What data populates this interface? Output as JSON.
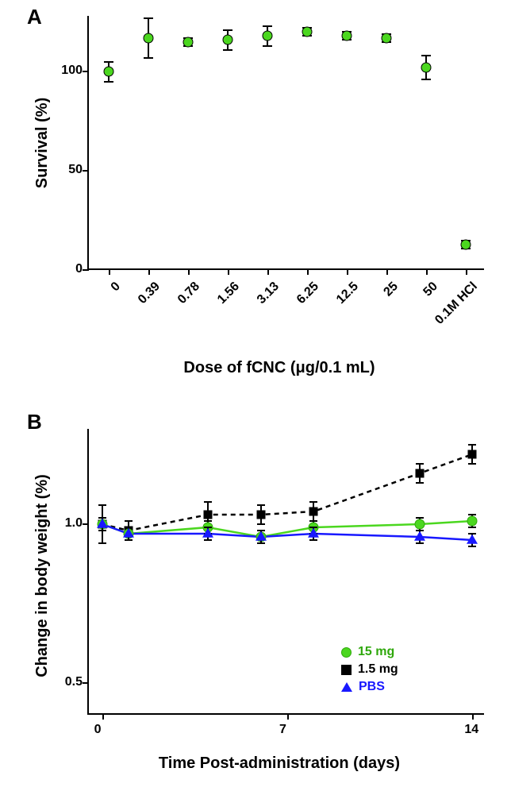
{
  "panelA": {
    "label": "A",
    "label_fontsize": 26,
    "ylabel": "Survival (%)",
    "xlabel": "Dose of fCNC (μg/0.1 mL)",
    "axis_label_fontsize": 20,
    "tick_fontsize": 16,
    "categories": [
      "0",
      "0.39",
      "0.78",
      "1.56",
      "3.13",
      "6.25",
      "12.5",
      "25",
      "50",
      "0.1M HCl"
    ],
    "values": [
      100,
      117,
      115,
      116,
      118,
      120,
      118,
      117,
      102,
      13
    ],
    "err": [
      5,
      10,
      2,
      5,
      5,
      2,
      2,
      2,
      6,
      2
    ],
    "ylim": [
      0,
      128
    ],
    "yticks": [
      0,
      50,
      100
    ],
    "marker_fill": "#4bd71f",
    "marker_stroke": "#000000",
    "marker_size": 13,
    "plot_bg": "#ffffff"
  },
  "panelB": {
    "label": "B",
    "label_fontsize": 26,
    "ylabel": "Change in body weight (%)",
    "xlabel": "Time Post-administration (days)",
    "axis_label_fontsize": 20,
    "tick_fontsize": 16,
    "xlim": [
      -0.5,
      14.5
    ],
    "xticks": [
      0,
      7,
      14
    ],
    "ylim": [
      0.4,
      1.3
    ],
    "yticks": [
      0.5,
      1.0
    ],
    "series": [
      {
        "name": "1.5 mg",
        "marker": "square",
        "fill": "#000000",
        "stroke": "#000000",
        "line_color": "#000000",
        "dash": "6,5",
        "size": 11,
        "x": [
          0,
          1,
          4,
          6,
          8,
          12,
          14
        ],
        "y": [
          1.0,
          0.98,
          1.03,
          1.03,
          1.04,
          1.16,
          1.22
        ],
        "err": [
          0.06,
          0.03,
          0.04,
          0.03,
          0.03,
          0.03,
          0.03
        ]
      },
      {
        "name": "15 mg",
        "marker": "circle",
        "fill": "#4bd71f",
        "stroke": "#2fa80c",
        "line_color": "#4bd71f",
        "dash": "",
        "size": 13,
        "x": [
          0,
          1,
          4,
          6,
          8,
          12,
          14
        ],
        "y": [
          1.0,
          0.97,
          0.99,
          0.96,
          0.99,
          1.0,
          1.01
        ],
        "err": [
          0.02,
          0.02,
          0.02,
          0.02,
          0.02,
          0.02,
          0.02
        ]
      },
      {
        "name": "PBS",
        "marker": "triangle",
        "fill": "#1818ff",
        "stroke": "#1818ff",
        "line_color": "#1818ff",
        "dash": "",
        "size": 12,
        "x": [
          0,
          1,
          4,
          6,
          8,
          12,
          14
        ],
        "y": [
          1.0,
          0.97,
          0.97,
          0.96,
          0.97,
          0.96,
          0.95
        ],
        "err": [
          0.02,
          0.02,
          0.02,
          0.02,
          0.02,
          0.02,
          0.02
        ]
      }
    ],
    "legend": {
      "items": [
        {
          "label": "15 mg",
          "marker": "circle",
          "fill": "#4bd71f",
          "stroke": "#2fa80c",
          "text_color": "#2fa80c"
        },
        {
          "label": "1.5 mg",
          "marker": "square",
          "fill": "#000000",
          "stroke": "#000000",
          "text_color": "#000000"
        },
        {
          "label": "PBS",
          "marker": "triangle",
          "fill": "#1818ff",
          "stroke": "#1818ff",
          "text_color": "#1818ff"
        }
      ]
    }
  }
}
